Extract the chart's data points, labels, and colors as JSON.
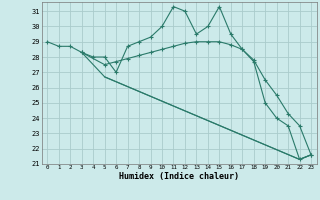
{
  "xlabel": "Humidex (Indice chaleur)",
  "bg_color": "#cceaea",
  "grid_color": "#aacccc",
  "line_color": "#2a7a6a",
  "xlim": [
    -0.5,
    23.5
  ],
  "ylim": [
    21,
    31.6
  ],
  "yticks": [
    21,
    22,
    23,
    24,
    25,
    26,
    27,
    28,
    29,
    30,
    31
  ],
  "xticks": [
    0,
    1,
    2,
    3,
    4,
    5,
    6,
    7,
    8,
    9,
    10,
    11,
    12,
    13,
    14,
    15,
    16,
    17,
    18,
    19,
    20,
    21,
    22,
    23
  ],
  "line1_x": [
    0,
    1,
    2,
    3,
    4,
    5,
    6,
    7,
    8,
    9,
    10,
    11,
    12,
    13,
    14,
    15,
    16,
    17,
    18,
    19,
    20,
    21,
    22,
    23
  ],
  "line1_y": [
    29.0,
    28.7,
    28.7,
    28.3,
    28.0,
    28.0,
    27.0,
    28.7,
    29.0,
    29.3,
    30.0,
    31.3,
    31.0,
    29.5,
    30.0,
    31.3,
    29.5,
    28.5,
    27.7,
    25.0,
    24.0,
    23.5,
    21.3,
    21.6
  ],
  "line2_x": [
    3,
    5,
    6,
    7,
    8,
    9,
    10,
    11,
    12,
    13,
    14,
    15,
    16,
    17,
    18,
    19,
    20,
    21,
    22,
    23
  ],
  "line2_y": [
    28.3,
    27.5,
    27.7,
    27.9,
    28.1,
    28.3,
    28.5,
    28.7,
    28.9,
    29.0,
    29.0,
    29.0,
    28.8,
    28.5,
    27.8,
    26.5,
    25.5,
    24.3,
    23.5,
    21.6
  ],
  "line3_x": [
    3,
    5,
    22,
    23
  ],
  "line3_y": [
    28.3,
    26.7,
    21.3,
    21.6
  ],
  "line4_x": [
    5,
    22,
    23
  ],
  "line4_y": [
    26.7,
    21.3,
    21.6
  ]
}
